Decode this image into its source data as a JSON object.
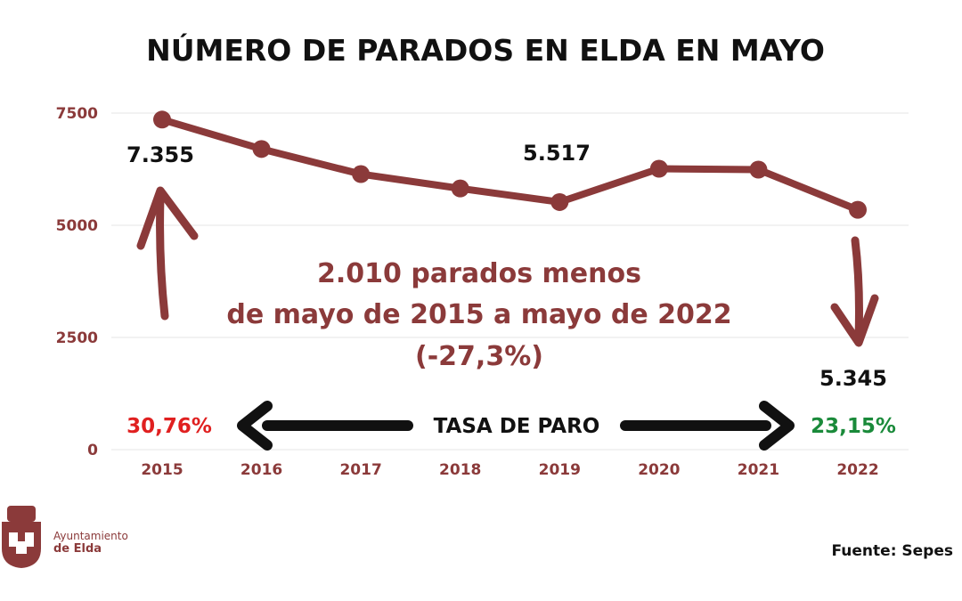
{
  "chart_data": {
    "type": "line",
    "title": "NÚMERO DE PARADOS EN ELDA EN MAYO",
    "categories": [
      "2015",
      "2016",
      "2017",
      "2018",
      "2019",
      "2020",
      "2021",
      "2022"
    ],
    "series": [
      {
        "values": [
          7355,
          6700,
          6140,
          5820,
          5517,
          6260,
          6240,
          5345
        ]
      }
    ],
    "ylim": [
      0,
      7500
    ],
    "yticks": [
      "0",
      "2500",
      "5000",
      "7500"
    ],
    "grid": true,
    "data_labels": [
      {
        "category": "2015",
        "text": "7.355"
      },
      {
        "category": "2019",
        "text": "5.517"
      },
      {
        "category": "2022",
        "text": "5.345"
      }
    ],
    "annotation": {
      "line1": "2.010 parados menos",
      "line2": "de mayo de 2015 a mayo de 2022",
      "line3": "(-27,3%)"
    },
    "unemployment_rate": {
      "label": "TASA DE PARO",
      "start": "30,76%",
      "end": "23,15%"
    },
    "colors": {
      "line": "#8b3a3a",
      "axis_text": "#8b3a3a",
      "rate_start": "#e02020",
      "rate_end": "#1a8a3a"
    }
  },
  "logo": {
    "line1": "Ayuntamiento",
    "line2": "de Elda"
  },
  "source": "Fuente: Sepes"
}
